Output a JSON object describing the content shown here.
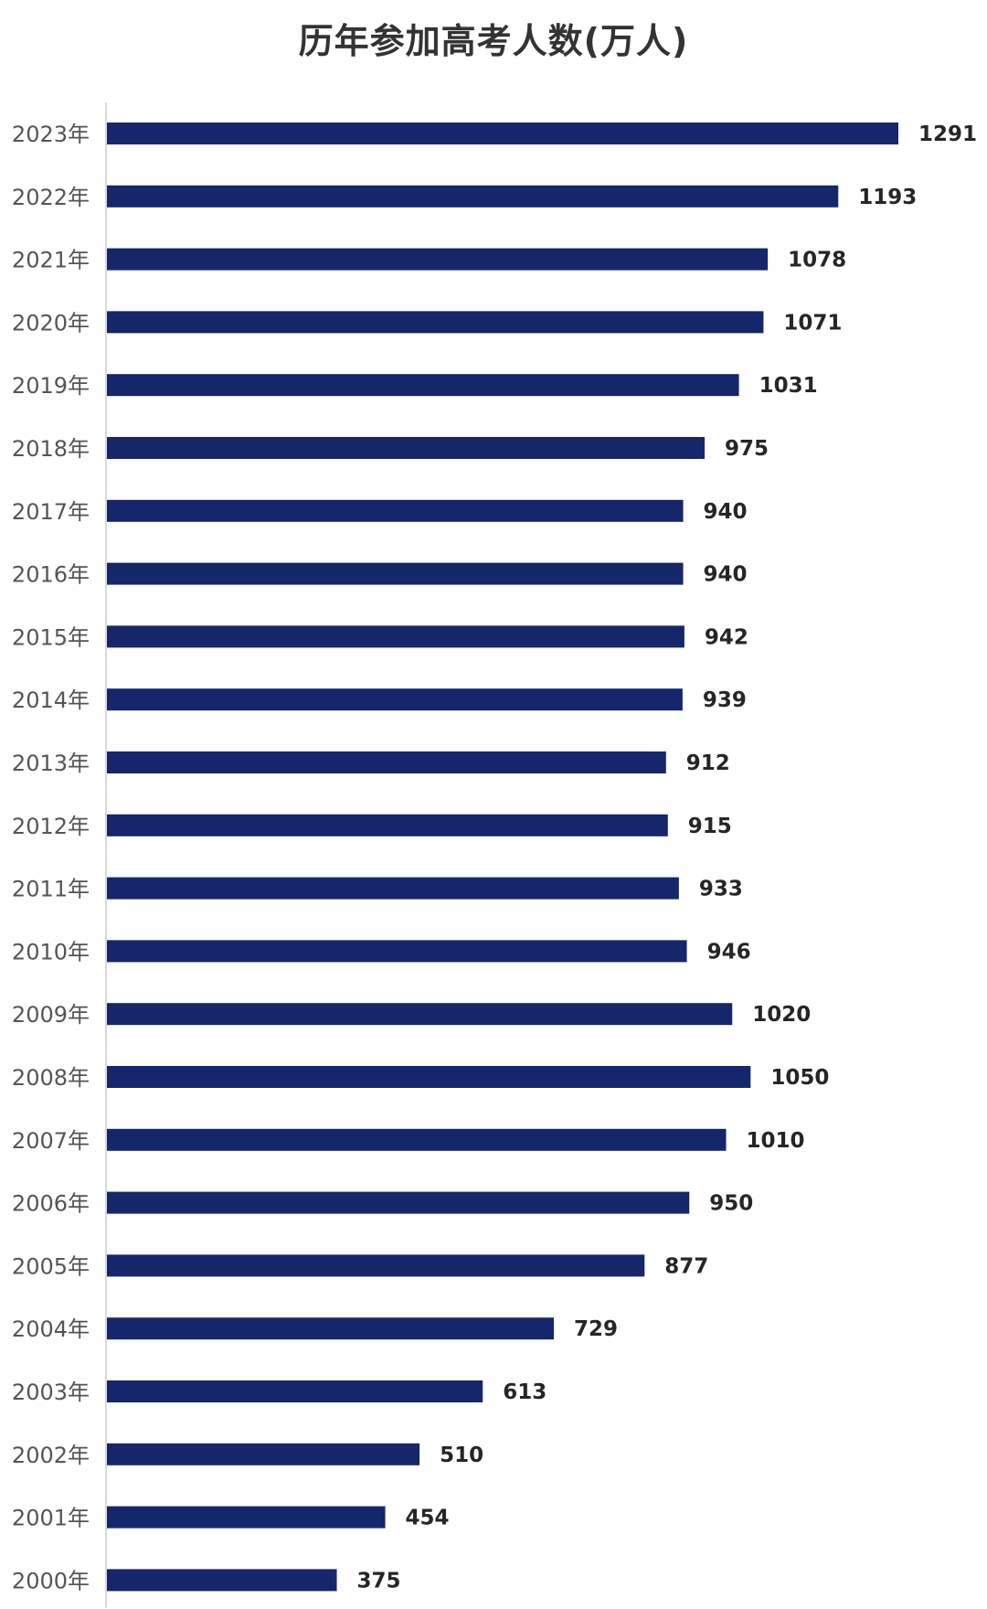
{
  "chart_data": {
    "type": "bar",
    "orientation": "horizontal",
    "title": "历年参加高考人数(万人)",
    "xlabel": "",
    "ylabel": "",
    "xlim": [
      0,
      1291
    ],
    "grid": false,
    "legend": "none",
    "bar_color": "#15266b",
    "categories": [
      "2023年",
      "2022年",
      "2021年",
      "2020年",
      "2019年",
      "2018年",
      "2017年",
      "2016年",
      "2015年",
      "2014年",
      "2013年",
      "2012年",
      "2011年",
      "2010年",
      "2009年",
      "2008年",
      "2007年",
      "2006年",
      "2005年",
      "2004年",
      "2003年",
      "2002年",
      "2001年",
      "2000年"
    ],
    "values": [
      1291,
      1193,
      1078,
      1071,
      1031,
      975,
      940,
      940,
      942,
      939,
      912,
      915,
      933,
      946,
      1020,
      1050,
      1010,
      950,
      877,
      729,
      613,
      510,
      454,
      375
    ]
  }
}
